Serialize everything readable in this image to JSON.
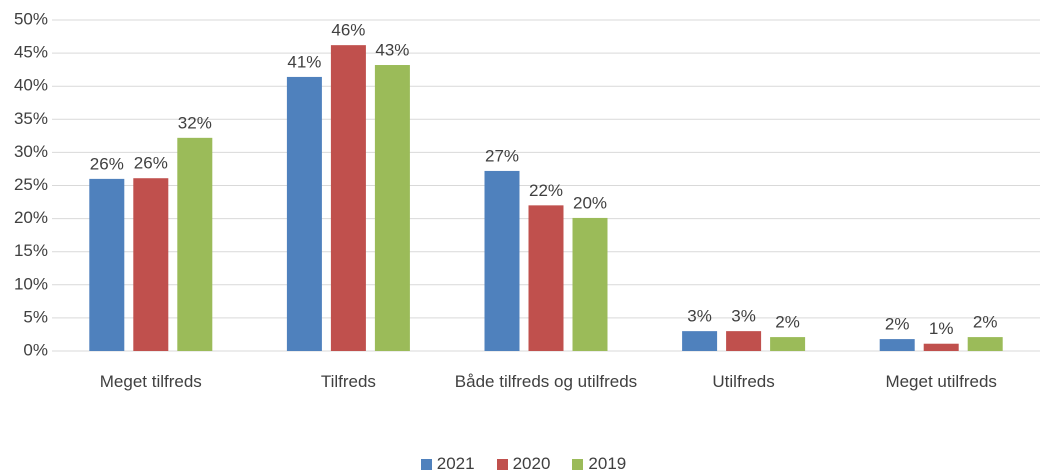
{
  "chart_data": {
    "type": "bar",
    "categories": [
      "Meget tilfreds",
      "Tilfreds",
      "Både tilfreds og utilfreds",
      "Utilfreds",
      "Meget utilfreds"
    ],
    "series": [
      {
        "name": "2021",
        "color": "#4f81bd",
        "values": [
          26.0,
          41.4,
          27.2,
          3.0,
          1.8
        ],
        "value_labels": [
          "26%",
          "41%",
          "27%",
          "3%",
          "2%"
        ]
      },
      {
        "name": "2020",
        "color": "#c0504d",
        "values": [
          26.1,
          46.2,
          22.0,
          3.0,
          1.1
        ],
        "value_labels": [
          "26%",
          "46%",
          "22%",
          "3%",
          "1%"
        ]
      },
      {
        "name": "2019",
        "color": "#9bbb59",
        "values": [
          32.2,
          43.2,
          20.1,
          2.1,
          2.1
        ],
        "value_labels": [
          "32%",
          "43%",
          "20%",
          "2%",
          "2%"
        ]
      }
    ],
    "ylim": [
      0,
      50
    ],
    "yticks": [
      {
        "value": 0,
        "label": "0%"
      },
      {
        "value": 5,
        "label": "5%"
      },
      {
        "value": 10,
        "label": "10%"
      },
      {
        "value": 15,
        "label": "15%"
      },
      {
        "value": 20,
        "label": "20%"
      },
      {
        "value": 25,
        "label": "25%"
      },
      {
        "value": 30,
        "label": "30%"
      },
      {
        "value": 35,
        "label": "35%"
      },
      {
        "value": 40,
        "label": "40%"
      },
      {
        "value": 45,
        "label": "45%"
      },
      {
        "value": 50,
        "label": "50%"
      }
    ],
    "grid": true,
    "legend": "bottom"
  }
}
